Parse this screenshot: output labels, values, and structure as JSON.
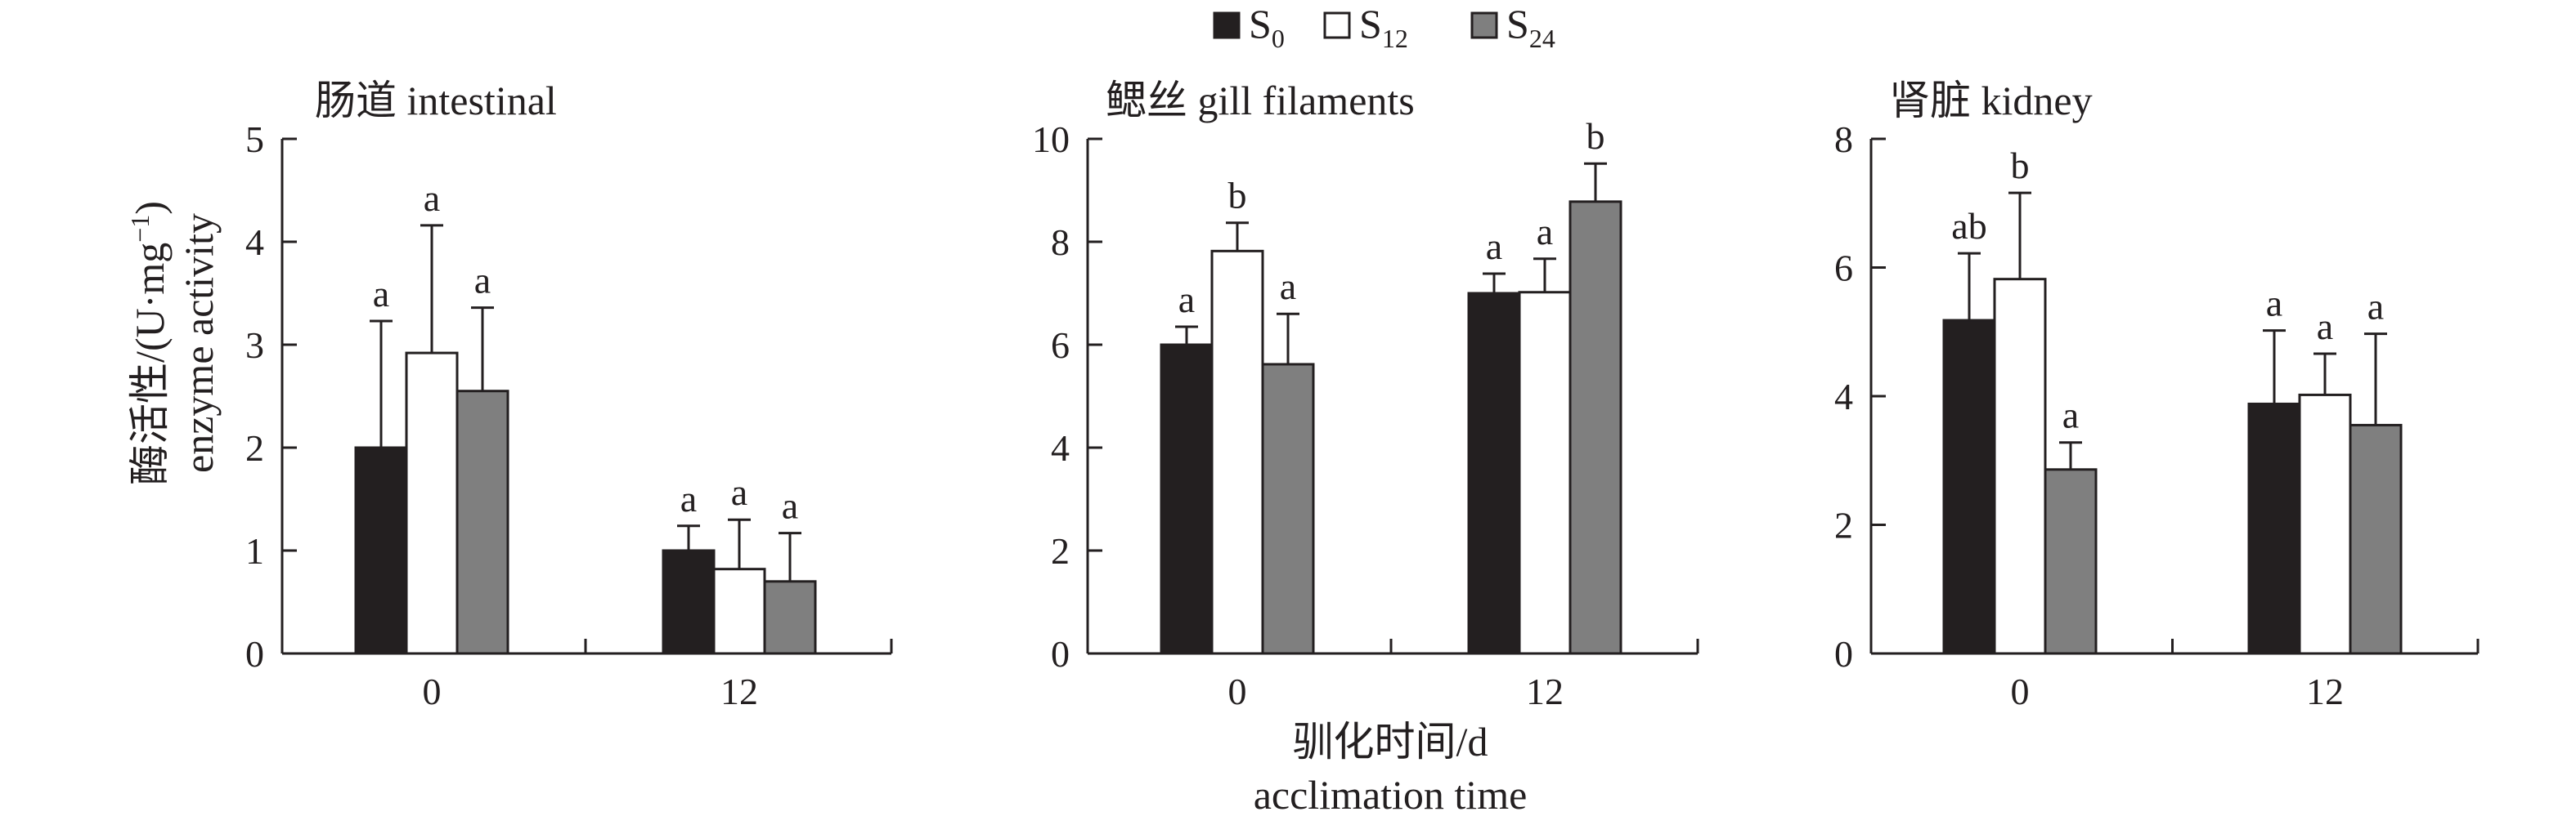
{
  "chart_data": {
    "type": "bar",
    "legend": {
      "placement": "top-center",
      "series": [
        {
          "base": "S",
          "sub": "0",
          "color": "#231f20"
        },
        {
          "base": "S",
          "sub": "12",
          "color": "#ffffff"
        },
        {
          "base": "S",
          "sub": "24",
          "color": "#7f7f7f"
        }
      ]
    },
    "ylabel": {
      "line1_zh": "酶活性/(U·mg",
      "line1_sup": "−1",
      "line1_end": ")",
      "line2": "enzyme activity"
    },
    "xlabel": {
      "line1": "驯化时间/d",
      "line2": "acclimation time"
    },
    "panels": [
      {
        "title": "肠道 intestinal",
        "categories": [
          "0",
          "12"
        ],
        "ylim": [
          0,
          5
        ],
        "yticks": [
          "0",
          "1",
          "2",
          "3",
          "4",
          "5"
        ],
        "series": [
          {
            "values": [
              2.0,
              1.0
            ],
            "errors": [
              1.23,
              0.24
            ],
            "letters": [
              "a",
              "a"
            ]
          },
          {
            "values": [
              2.92,
              0.82
            ],
            "errors": [
              1.24,
              0.48
            ],
            "letters": [
              "a",
              "a"
            ]
          },
          {
            "values": [
              2.55,
              0.7
            ],
            "errors": [
              0.81,
              0.47
            ],
            "letters": [
              "a",
              "a"
            ]
          }
        ]
      },
      {
        "title": "鳃丝 gill filaments",
        "categories": [
          "0",
          "12"
        ],
        "ylim": [
          0,
          10
        ],
        "yticks": [
          "0",
          "2",
          "4",
          "6",
          "8",
          "10"
        ],
        "series": [
          {
            "values": [
              6.0,
              7.0
            ],
            "errors": [
              0.35,
              0.38
            ],
            "letters": [
              "a",
              "a"
            ]
          },
          {
            "values": [
              7.82,
              7.02
            ],
            "errors": [
              0.55,
              0.65
            ],
            "letters": [
              "b",
              "a"
            ]
          },
          {
            "values": [
              5.62,
              8.78
            ],
            "errors": [
              0.98,
              0.74
            ],
            "letters": [
              "a",
              "b"
            ]
          }
        ]
      },
      {
        "title": "肾脏 kidney",
        "categories": [
          "0",
          "12"
        ],
        "ylim": [
          0,
          8
        ],
        "yticks": [
          "0",
          "2",
          "4",
          "6",
          "8"
        ],
        "series": [
          {
            "values": [
              5.18,
              3.88
            ],
            "errors": [
              1.04,
              1.14
            ],
            "letters": [
              "ab",
              "a"
            ]
          },
          {
            "values": [
              5.82,
              4.02
            ],
            "errors": [
              1.34,
              0.64
            ],
            "letters": [
              "b",
              "a"
            ]
          },
          {
            "values": [
              2.86,
              3.55
            ],
            "errors": [
              0.42,
              1.42
            ],
            "letters": [
              "a",
              "a"
            ]
          }
        ]
      }
    ]
  }
}
